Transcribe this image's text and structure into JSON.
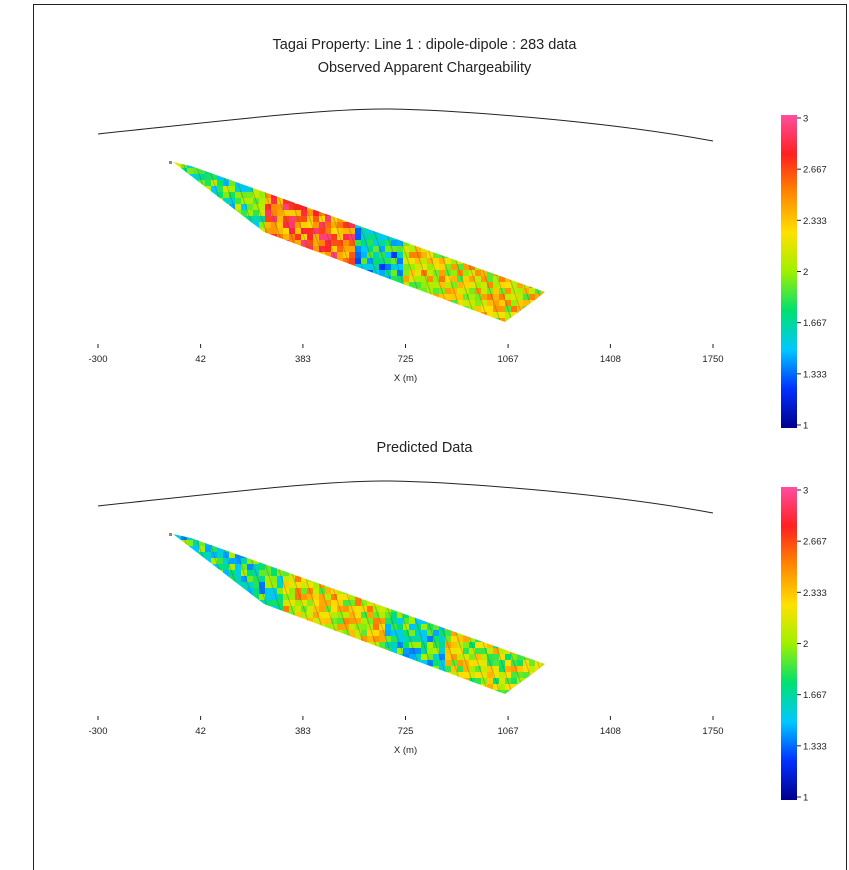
{
  "header": {
    "title_line1": "Tagai Property: Line 1 : dipole-dipole : 283 data"
  },
  "chart_data": [
    {
      "type": "heatmap",
      "title": "Observed Apparent Chargeability",
      "xlabel": "X (m)",
      "xticks": [
        -300,
        42,
        383,
        725,
        1067,
        1408,
        1750
      ],
      "xlim": [
        -300,
        1750
      ],
      "colorbar": {
        "min": 1,
        "max": 3,
        "ticks": [
          "3",
          "2.667",
          "2.333",
          "2",
          "1.667",
          "1.333",
          "1"
        ],
        "colors": [
          "#00008b",
          "#0030ff",
          "#00c8ff",
          "#00e070",
          "#a0f000",
          "#ffe000",
          "#ff8800",
          "#ff2020",
          "#ff4fa0"
        ]
      },
      "pseudosection_x_range": [
        -30,
        1190
      ],
      "regions": [
        {
          "x_range": [
            -30,
            250
          ],
          "value": 1.8
        },
        {
          "x_range": [
            250,
            540
          ],
          "value": 2.6
        },
        {
          "x_range": [
            540,
            700
          ],
          "value": 1.6
        },
        {
          "x_range": [
            700,
            1190
          ],
          "value": 2.2
        }
      ]
    },
    {
      "type": "heatmap",
      "title": "Predicted Data",
      "xlabel": "X (m)",
      "xticks": [
        -300,
        42,
        383,
        725,
        1067,
        1408,
        1750
      ],
      "xlim": [
        -300,
        1750
      ],
      "colorbar": {
        "min": 1,
        "max": 3,
        "ticks": [
          "3",
          "2.667",
          "2.333",
          "2",
          "1.667",
          "1.333",
          "1"
        ],
        "colors": [
          "#00008b",
          "#0030ff",
          "#00c8ff",
          "#00e070",
          "#a0f000",
          "#ffe000",
          "#ff8800",
          "#ff2020",
          "#ff4fa0"
        ]
      },
      "pseudosection_x_range": [
        -30,
        1190
      ],
      "regions": [
        {
          "x_range": [
            -30,
            300
          ],
          "value": 1.7
        },
        {
          "x_range": [
            300,
            650
          ],
          "value": 2.2
        },
        {
          "x_range": [
            650,
            850
          ],
          "value": 1.7
        },
        {
          "x_range": [
            850,
            1190
          ],
          "value": 2.1
        }
      ]
    }
  ]
}
